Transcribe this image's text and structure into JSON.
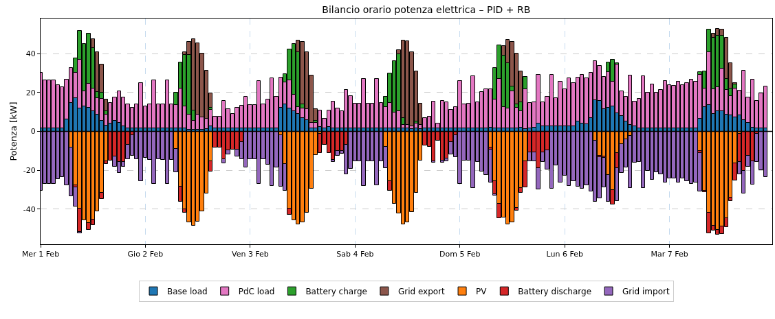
{
  "chart_data": {
    "type": "bar",
    "stacked": true,
    "title": "Bilancio orario potenza elettrica – PID + RB",
    "ylabel": "Potenza [kW]",
    "x": [
      "--02-01T00:00",
      "--02-01T01:00",
      "--02-01T02:00",
      "--02-01T03:00",
      "--02-01T04:00",
      "--02-01T05:00",
      "--02-01T06:00",
      "--02-01T07:00",
      "--02-01T08:00",
      "--02-01T09:00",
      "--02-01T10:00",
      "--02-01T11:00",
      "--02-01T12:00",
      "--02-01T13:00",
      "--02-01T14:00",
      "--02-01T15:00",
      "--02-01T16:00",
      "--02-01T17:00",
      "--02-01T18:00",
      "--02-01T19:00",
      "--02-01T20:00",
      "--02-01T21:00",
      "--02-01T22:00",
      "--02-01T23:00",
      "--02-02T00:00",
      "--02-02T01:00",
      "--02-02T02:00",
      "--02-02T03:00",
      "--02-02T04:00",
      "--02-02T05:00",
      "--02-02T06:00",
      "--02-02T07:00",
      "--02-02T08:00",
      "--02-02T09:00",
      "--02-02T10:00",
      "--02-02T11:00",
      "--02-02T12:00",
      "--02-02T13:00",
      "--02-02T14:00",
      "--02-02T15:00",
      "--02-02T16:00",
      "--02-02T17:00",
      "--02-02T18:00",
      "--02-02T19:00",
      "--02-02T20:00",
      "--02-02T21:00",
      "--02-02T22:00",
      "--02-02T23:00",
      "--02-03T00:00",
      "--02-03T01:00",
      "--02-03T02:00",
      "--02-03T03:00",
      "--02-03T04:00",
      "--02-03T05:00",
      "--02-03T06:00",
      "--02-03T07:00",
      "--02-03T08:00",
      "--02-03T09:00",
      "--02-03T10:00",
      "--02-03T11:00",
      "--02-03T12:00",
      "--02-03T13:00",
      "--02-03T14:00",
      "--02-03T15:00",
      "--02-03T16:00",
      "--02-03T17:00",
      "--02-03T18:00",
      "--02-03T19:00",
      "--02-03T20:00",
      "--02-03T21:00",
      "--02-03T22:00",
      "--02-03T23:00",
      "--02-04T00:00",
      "--02-04T01:00",
      "--02-04T02:00",
      "--02-04T03:00",
      "--02-04T04:00",
      "--02-04T05:00",
      "--02-04T06:00",
      "--02-04T07:00",
      "--02-04T08:00",
      "--02-04T09:00",
      "--02-04T10:00",
      "--02-04T11:00",
      "--02-04T12:00",
      "--02-04T13:00",
      "--02-04T14:00",
      "--02-04T15:00",
      "--02-04T16:00",
      "--02-04T17:00",
      "--02-04T18:00",
      "--02-04T19:00",
      "--02-04T20:00",
      "--02-04T21:00",
      "--02-04T22:00",
      "--02-04T23:00",
      "--02-05T00:00",
      "--02-05T01:00",
      "--02-05T02:00",
      "--02-05T03:00",
      "--02-05T04:00",
      "--02-05T05:00",
      "--02-05T06:00",
      "--02-05T07:00",
      "--02-05T08:00",
      "--02-05T09:00",
      "--02-05T10:00",
      "--02-05T11:00",
      "--02-05T12:00",
      "--02-05T13:00",
      "--02-05T14:00",
      "--02-05T15:00",
      "--02-05T16:00",
      "--02-05T17:00",
      "--02-05T18:00",
      "--02-05T19:00",
      "--02-05T20:00",
      "--02-05T21:00",
      "--02-05T22:00",
      "--02-05T23:00",
      "--02-06T00:00",
      "--02-06T01:00",
      "--02-06T02:00",
      "--02-06T03:00",
      "--02-06T04:00",
      "--02-06T05:00",
      "--02-06T06:00",
      "--02-06T07:00",
      "--02-06T08:00",
      "--02-06T09:00",
      "--02-06T10:00",
      "--02-06T11:00",
      "--02-06T12:00",
      "--02-06T13:00",
      "--02-06T14:00",
      "--02-06T15:00",
      "--02-06T16:00",
      "--02-06T17:00",
      "--02-06T18:00",
      "--02-06T19:00",
      "--02-06T20:00",
      "--02-06T21:00",
      "--02-06T22:00",
      "--02-06T23:00",
      "--02-07T00:00",
      "--02-07T01:00",
      "--02-07T02:00",
      "--02-07T03:00",
      "--02-07T04:00",
      "--02-07T05:00",
      "--02-07T06:00",
      "--02-07T07:00",
      "--02-07T08:00",
      "--02-07T09:00",
      "--02-07T10:00",
      "--02-07T11:00",
      "--02-07T12:00",
      "--02-07T13:00",
      "--02-07T14:00",
      "--02-07T15:00",
      "--02-07T16:00",
      "--02-07T17:00",
      "--02-07T18:00",
      "--02-07T19:00",
      "--02-07T20:00",
      "--02-07T21:00",
      "--02-07T22:00"
    ],
    "xlim": [
      "--02-01T00:00",
      "--02-07T23:30"
    ],
    "xticks": [
      {
        "value": "--02-01",
        "label": "Mer 1 Feb"
      },
      {
        "value": "--02-02",
        "label": "Gio 2 Feb"
      },
      {
        "value": "--02-03",
        "label": "Ven 3 Feb"
      },
      {
        "value": "--02-04",
        "label": "Sab 4 Feb"
      },
      {
        "value": "--02-05",
        "label": "Dom 5 Feb"
      },
      {
        "value": "--02-06",
        "label": "Lun 6 Feb"
      },
      {
        "value": "--02-07",
        "label": "Mar 7 Feb"
      }
    ],
    "ylim": [
      -58,
      58
    ],
    "yticks": [
      -40,
      -20,
      0,
      20,
      40
    ],
    "grid": true,
    "legend": "bottom",
    "ref_lines": [
      {
        "axis": "y",
        "value": 0,
        "color": "#000000"
      }
    ],
    "series": [
      {
        "name": "Base load",
        "color": "#1f77b4",
        "values": [
          1.5,
          1.5,
          1.5,
          1.5,
          1.5,
          1.5,
          6.2,
          14.7,
          17.1,
          11.8,
          12.7,
          12.3,
          10.5,
          8.5,
          5.4,
          3.0,
          4.2,
          5.4,
          4.4,
          2.7,
          1.5,
          1.5,
          1.5,
          1.5,
          1.5,
          1.5,
          1.5,
          1.5,
          1.5,
          1.5,
          1.5,
          1.5,
          1.5,
          1.5,
          0.9,
          0.9,
          0.9,
          0.9,
          1.2,
          2.7,
          1.5,
          1.5,
          1.5,
          1.5,
          1.5,
          1.5,
          1.5,
          1.5,
          1.5,
          1.5,
          1.5,
          1.5,
          1.5,
          1.5,
          1.5,
          12.3,
          13.8,
          11.8,
          10.3,
          8.9,
          6.8,
          5.8,
          1.5,
          1.5,
          2.3,
          1.5,
          2.3,
          1.5,
          1.5,
          1.5,
          1.5,
          1.5,
          1.5,
          1.5,
          1.5,
          1.5,
          1.5,
          1.5,
          1.5,
          1.5,
          1.5,
          1.5,
          1.5,
          1.5,
          1.5,
          1.3,
          1.5,
          1.3,
          1.5,
          1.5,
          1.5,
          1.5,
          1.5,
          1.5,
          1.5,
          1.5,
          1.5,
          1.5,
          1.5,
          1.5,
          1.5,
          1.5,
          1.5,
          2.1,
          1.5,
          1.5,
          1.5,
          1.5,
          1.5,
          1.5,
          1.8,
          1.2,
          1.5,
          2.1,
          4.2,
          2.5,
          2.5,
          2.5,
          2.5,
          2.5,
          2.5,
          2.5,
          2.5,
          5,
          3.9,
          3.6,
          7,
          15.9,
          15.6,
          11.5,
          12,
          12.9,
          9.4,
          8,
          5,
          3.3,
          2.7,
          1.5,
          1.5,
          1.5,
          1.5,
          1.5,
          1.5,
          1.5,
          1.5,
          1.5,
          1.5,
          1.5,
          1.5,
          1.5,
          1.5,
          6.4,
          12.6,
          13.5,
          9.1,
          10.3,
          10.3,
          8.5,
          8.2,
          7.1,
          8.2,
          5.8,
          4.4,
          1.9,
          1.5,
          1.5,
          1.5
        ]
      },
      {
        "name": "PdC load",
        "color": "#e377c2",
        "values": [
          28.7,
          24.9,
          24.9,
          24.9,
          22.2,
          21.4,
          20.5,
          18.0,
          12.9,
          25.2,
          7.9,
          12.3,
          11.7,
          8.6,
          11.3,
          5.5,
          10.4,
          12.1,
          16.1,
          14.8,
          12.5,
          10.5,
          12.3,
          23.4,
          11.4,
          12.3,
          24.9,
          12.3,
          12.3,
          24.9,
          12.3,
          12.0,
          20.5,
          11.4,
          7.9,
          4.4,
          7.6,
          6.2,
          5.3,
          8.4,
          6.2,
          6.2,
          14.3,
          10.0,
          7.6,
          10.5,
          11.7,
          16.4,
          12.0,
          12.1,
          24.3,
          12.3,
          14.9,
          25.8,
          16.4,
          15.3,
          11.3,
          14.6,
          8.5,
          3.7,
          4.9,
          5.7,
          2.9,
          2.9,
          8.6,
          4.9,
          8.6,
          13.7,
          10.3,
          9.0,
          19.9,
          16.7,
          12.7,
          12.7,
          25.4,
          12.7,
          12.7,
          25.4,
          13.2,
          10.9,
          13.2,
          8.2,
          8.8,
          2.0,
          1.8,
          1.4,
          2.7,
          2.2,
          5.3,
          6.2,
          13.7,
          2.7,
          14.1,
          13.5,
          9.7,
          10.9,
          24.3,
          12.5,
          12.8,
          26.9,
          13.5,
          18.7,
          20.3,
          19.7,
          15.0,
          25.4,
          10.9,
          10.3,
          19.3,
          10.5,
          8.7,
          20.6,
          13.2,
          12.9,
          25,
          12.5,
          15.4,
          26.5,
          14.5,
          23,
          19.3,
          25,
          22.2,
          22.8,
          25.1,
          23.7,
          23.2,
          20.1,
          17.9,
          16.6,
          18.5,
          12.6,
          24.9,
          12.6,
          12.9,
          25.4,
          12.5,
          15.2,
          26.9,
          18.4,
          22.8,
          18.5,
          19.7,
          24.3,
          22.2,
          21.9,
          24,
          22.2,
          23.4,
          25.2,
          24.2,
          22.6,
          9.4,
          27.4,
          12.7,
          12.6,
          22,
          12.9,
          10,
          14.9,
          12.9,
          25.3,
          13.1,
          24.8,
          14.1,
          17.9,
          21.7
        ]
      },
      {
        "name": "Battery charge",
        "color": "#2ca02c",
        "values": [
          null,
          null,
          null,
          null,
          null,
          null,
          null,
          null,
          7.5,
          14.6,
          24.4,
          25.5,
          20.8,
          3.1,
          3.3,
          1.8,
          null,
          null,
          null,
          null,
          null,
          null,
          null,
          null,
          null,
          null,
          null,
          null,
          null,
          null,
          null,
          6.5,
          13.4,
          26.3,
          30.4,
          5.6,
          null,
          null,
          null,
          0.9,
          null,
          null,
          null,
          null,
          null,
          null,
          null,
          null,
          null,
          null,
          null,
          null,
          null,
          null,
          null,
          null,
          4.5,
          15.8,
          26.2,
          28.1,
          2.3,
          null,
          null,
          1.2,
          null,
          null,
          null,
          null,
          null,
          null,
          null,
          null,
          null,
          null,
          null,
          null,
          null,
          null,
          null,
          5.3,
          15.2,
          26.3,
          29.2,
          3.5,
          null,
          null,
          0.8,
          null,
          null,
          null,
          null,
          null,
          null,
          null,
          null,
          null,
          null,
          null,
          null,
          null,
          null,
          null,
          null,
          null,
          16,
          17.3,
          26.5,
          23.3,
          2.4,
          1.8,
          4.5,
          6.3,
          null,
          null,
          null,
          null,
          null,
          null,
          null,
          null,
          null,
          null,
          null,
          null,
          null,
          null,
          null,
          null,
          null,
          null,
          4.9,
          11.5,
          0.8,
          null,
          null,
          null,
          null,
          null,
          null,
          null,
          null,
          null,
          null,
          null,
          null,
          null,
          null,
          null,
          null,
          null,
          null,
          1.4,
          8.8,
          11.3,
          26.5,
          26.3,
          16.9,
          5.5,
          4,
          2.3,
          null,
          null,
          null,
          null,
          null,
          null,
          null
        ]
      },
      {
        "name": "Grid export",
        "color": "#8c564b",
        "values": [
          null,
          null,
          null,
          null,
          null,
          null,
          null,
          null,
          null,
          null,
          null,
          null,
          4.4,
          20.5,
          14.3,
          6.1,
          null,
          null,
          null,
          null,
          null,
          null,
          null,
          null,
          null,
          null,
          null,
          null,
          null,
          null,
          null,
          null,
          null,
          1.7,
          6.8,
          36.5,
          36.9,
          33,
          24.8,
          7.6,
          null,
          null,
          null,
          null,
          null,
          null,
          null,
          null,
          null,
          null,
          null,
          null,
          null,
          null,
          null,
          null,
          null,
          null,
          null,
          6.1,
          32,
          29.2,
          24.3,
          5.9,
          null,
          null,
          null,
          null,
          null,
          null,
          null,
          null,
          null,
          null,
          null,
          null,
          null,
          null,
          null,
          null,
          null,
          null,
          2.4,
          39.8,
          42.9,
          38,
          26,
          10.7,
          null,
          null,
          null,
          null,
          null,
          null,
          null,
          null,
          null,
          null,
          null,
          null,
          null,
          null,
          null,
          null,
          null,
          null,
          5,
          12,
          22.8,
          26.3,
          16,
          null,
          null,
          null,
          null,
          null,
          null,
          null,
          null,
          null,
          null,
          null,
          null,
          null,
          null,
          null,
          null,
          null,
          null,
          null,
          null,
          null,
          null,
          null,
          null,
          null,
          null,
          null,
          null,
          null,
          null,
          null,
          null,
          null,
          null,
          null,
          null,
          null,
          null,
          null,
          null,
          null,
          null,
          null,
          1.8,
          3.4,
          3.2,
          21.4,
          12.9,
          0.6,
          null,
          null,
          null,
          null,
          null,
          null,
          null
        ]
      },
      {
        "name": "PV",
        "color": "#ff7f0e",
        "values": [
          null,
          null,
          null,
          null,
          null,
          null,
          null,
          -8.4,
          -27.5,
          -39.6,
          -45.6,
          -47,
          -45.3,
          -40.9,
          -31.6,
          -15.2,
          null,
          null,
          null,
          null,
          null,
          null,
          null,
          null,
          null,
          null,
          null,
          null,
          null,
          null,
          null,
          -9,
          -28.5,
          -40,
          -46.8,
          -48.4,
          -46.2,
          -41.2,
          -31.8,
          -15.2,
          null,
          null,
          null,
          null,
          null,
          null,
          null,
          null,
          null,
          null,
          null,
          null,
          null,
          null,
          null,
          -2,
          -16.6,
          -39.8,
          -45.8,
          -47.6,
          -46.8,
          -41.8,
          -29.5,
          -12.3,
          -1.4,
          null,
          null,
          null,
          null,
          null,
          null,
          null,
          null,
          null,
          null,
          null,
          null,
          null,
          null,
          -7.8,
          -25.7,
          -37.1,
          -42.3,
          -47.6,
          -46.8,
          -41.4,
          -31.6,
          -14.9,
          null,
          null,
          null,
          null,
          null,
          null,
          null,
          null,
          null,
          null,
          null,
          null,
          null,
          null,
          null,
          -8.4,
          -25.7,
          -37.1,
          -44.4,
          -47.6,
          -46.8,
          -39.4,
          -29.2,
          -15.2,
          null,
          null,
          null,
          null,
          null,
          null,
          null,
          null,
          null,
          null,
          null,
          null,
          null,
          null,
          null,
          -4.9,
          -12.5,
          -12.9,
          -22.5,
          -30.1,
          -11,
          -6.4,
          -3.9,
          -2.3,
          null,
          null,
          null,
          null,
          null,
          null,
          null,
          null,
          null,
          null,
          null,
          null,
          null,
          null,
          null,
          -10.2,
          -30.4,
          -41.8,
          -48.4,
          -50.5,
          -48.8,
          -44.7,
          -33.9,
          -16.4,
          -1.4,
          null,
          null,
          null,
          null,
          null,
          null
        ]
      },
      {
        "name": "Battery discharge",
        "color": "#d62728",
        "values": [
          null,
          null,
          null,
          null,
          null,
          null,
          null,
          null,
          -1.4,
          -12.1,
          null,
          -3.5,
          -2.9,
          null,
          -3.1,
          -1.6,
          -14.9,
          -12.7,
          -15.7,
          -15.7,
          -6.9,
          -2,
          null,
          null,
          null,
          null,
          null,
          null,
          null,
          null,
          null,
          null,
          -7.6,
          -1.8,
          null,
          null,
          null,
          null,
          null,
          -5.3,
          -8.2,
          -8.4,
          -14.3,
          -9.6,
          -9.4,
          -9.4,
          -5.5,
          null,
          null,
          null,
          null,
          null,
          null,
          null,
          null,
          null,
          null,
          -3.1,
          null,
          null,
          null,
          null,
          null,
          null,
          -9.6,
          -6.7,
          -11,
          -14.5,
          -10.2,
          -10.2,
          -6.7,
          null,
          null,
          null,
          null,
          null,
          null,
          null,
          null,
          null,
          -4.9,
          null,
          null,
          null,
          null,
          null,
          null,
          null,
          -7.3,
          -8.1,
          -15.2,
          -4.9,
          -14.9,
          -14,
          -5.5,
          -1.8,
          null,
          null,
          null,
          null,
          null,
          null,
          null,
          -1,
          -6.7,
          -7.6,
          null,
          null,
          null,
          -1.2,
          -2.4,
          -13.7,
          -10.8,
          -10.8,
          -18.9,
          -10.8,
          -9.6,
          null,
          null,
          null,
          null,
          null,
          null,
          null,
          null,
          null,
          null,
          null,
          -0.8,
          -0.8,
          null,
          -7.3,
          -7.9,
          null,
          null,
          null,
          null,
          null,
          null,
          null,
          null,
          null,
          null,
          null,
          null,
          null,
          null,
          null,
          null,
          null,
          null,
          -0.8,
          -0.8,
          -10.5,
          -2.4,
          -2.4,
          -3.8,
          -4.4,
          -2,
          -8.7,
          -14.3,
          -20.1,
          -12.5,
          -15.2,
          -1.2,
          null,
          null
        ]
      },
      {
        "name": "Grid import",
        "color": "#9467bd",
        "values": [
          -30.6,
          -27.1,
          -27.1,
          -27.1,
          -24.4,
          -23.6,
          -27.7,
          -24.9,
          -9.7,
          -0.6,
          null,
          null,
          null,
          null,
          null,
          null,
          null,
          -5.3,
          -5.6,
          -2.3,
          -7.4,
          -10.5,
          -14.3,
          -25.7,
          -13.7,
          -14.5,
          -27.1,
          -14.3,
          -14.5,
          -27.1,
          -14.5,
          -12,
          null,
          null,
          null,
          null,
          null,
          null,
          null,
          null,
          null,
          null,
          -2.1,
          -2.3,
          null,
          -3.5,
          -8.8,
          -18.4,
          -14.3,
          -14.3,
          -26.8,
          -14.3,
          -17.2,
          -28.1,
          -18.4,
          -26.3,
          -13.8,
          null,
          null,
          null,
          null,
          null,
          null,
          null,
          null,
          null,
          null,
          -1.3,
          -2.3,
          -1.1,
          -15.2,
          -19.2,
          -15.2,
          -15.2,
          -28,
          -15.2,
          -15.2,
          -27.7,
          -15.2,
          -10.9,
          null,
          null,
          null,
          null,
          null,
          null,
          null,
          null,
          null,
          null,
          -0.8,
          null,
          -1.2,
          -1.4,
          -6.4,
          -11.5,
          -26.8,
          -14.9,
          -14.9,
          -29.2,
          -15.8,
          -20.7,
          -22.5,
          -16.9,
          -0.6,
          null,
          null,
          null,
          null,
          null,
          null,
          null,
          -4.4,
          -4.6,
          -10.8,
          -5,
          -9.9,
          -29.5,
          -17.5,
          -26.2,
          -22.7,
          -28.1,
          -25.7,
          -28.5,
          -29.5,
          -27.7,
          -31,
          -31.4,
          -21.1,
          -15.2,
          -13.8,
          null,
          -16.8,
          -15.1,
          -14.5,
          -26.9,
          -16,
          -15.8,
          -29.2,
          -20.4,
          -25,
          -21,
          -21.9,
          -26.3,
          -24.2,
          -24.2,
          -26.3,
          -24.2,
          -25.4,
          -27.1,
          -26.2,
          -19.9,
          null,
          null,
          null,
          null,
          null,
          null,
          null,
          null,
          -6.5,
          -11.7,
          -5.5,
          -12.2,
          -14.5,
          -19.9,
          -23.6
        ]
      }
    ]
  }
}
